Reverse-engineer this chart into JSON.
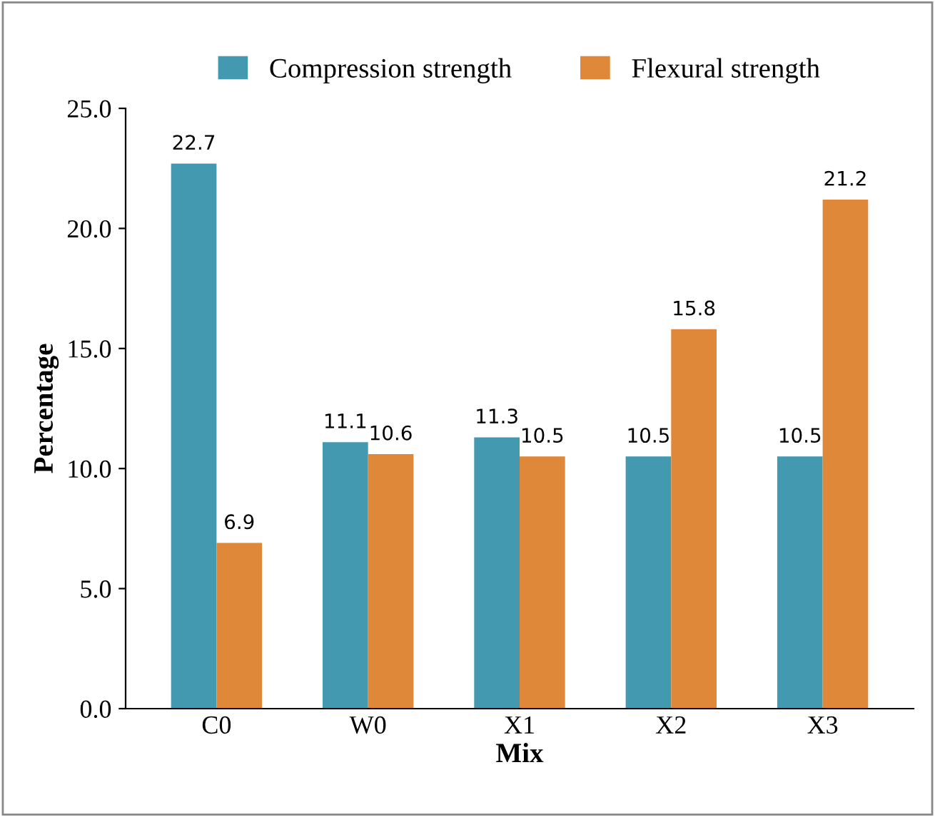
{
  "chart_data": {
    "type": "bar",
    "xlabel": "Mix",
    "ylabel": "Percentage",
    "categories": [
      "C0",
      "W0",
      "X1",
      "X2",
      "X3"
    ],
    "series": [
      {
        "name": "Compression strength",
        "color": "#4299b0",
        "values": [
          22.7,
          11.1,
          11.3,
          10.5,
          10.5
        ]
      },
      {
        "name": "Flexural strength",
        "color": "#e0883a",
        "values": [
          6.9,
          10.6,
          10.5,
          15.8,
          21.2
        ]
      }
    ],
    "ylim": [
      0,
      25
    ],
    "yticks": [
      {
        "value": 0,
        "label": "0.0"
      },
      {
        "value": 5,
        "label": "5.0"
      },
      {
        "value": 10,
        "label": "10.0"
      },
      {
        "value": 15,
        "label": "15.0"
      },
      {
        "value": 20,
        "label": "20.0"
      },
      {
        "value": 25,
        "label": "25.0"
      }
    ],
    "data_labels": true,
    "legend": "top",
    "grid": false
  }
}
